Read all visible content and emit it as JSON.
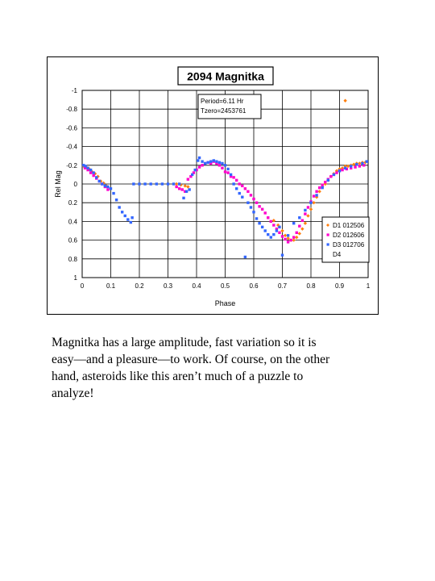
{
  "chart_data": {
    "type": "scatter",
    "title": "2094 Magnitka",
    "annotation": [
      "Period=6.11 Hr",
      "Tzero=2453761"
    ],
    "xlabel": "Phase",
    "ylabel": "Rel Mag",
    "xlim": [
      0,
      1
    ],
    "ylim": [
      -1,
      1
    ],
    "y_inverted": true,
    "grid": true,
    "legend_position": "lower-right",
    "x_ticks": [
      "0",
      "0.1",
      "0.2",
      "0.3",
      "0.4",
      "0.5",
      "0.6",
      "0.7",
      "0.8",
      "0.9",
      "1"
    ],
    "y_ticks": [
      "-1",
      "-0.8",
      "-0.6",
      "-0.4",
      "-0.2",
      "0",
      "0.2",
      "0.4",
      "0.6",
      "0.8",
      "1"
    ],
    "series": [
      {
        "name": "D1 012506",
        "color": "#ff7f0e",
        "marker": "diamond",
        "points": [
          [
            0.005,
            -0.19
          ],
          [
            0.015,
            -0.18
          ],
          [
            0.025,
            -0.16
          ],
          [
            0.035,
            -0.13
          ],
          [
            0.045,
            -0.11
          ],
          [
            0.055,
            -0.08
          ],
          [
            0.065,
            -0.03
          ],
          [
            0.075,
            -0.01
          ],
          [
            0.085,
            0.02
          ],
          [
            0.33,
            0.0
          ],
          [
            0.345,
            0.01
          ],
          [
            0.36,
            0.02
          ],
          [
            0.37,
            0.03
          ],
          [
            0.67,
            0.39
          ],
          [
            0.685,
            0.44
          ],
          [
            0.7,
            0.5
          ],
          [
            0.71,
            0.55
          ],
          [
            0.72,
            0.58
          ],
          [
            0.73,
            0.6
          ],
          [
            0.74,
            0.6
          ],
          [
            0.75,
            0.57
          ],
          [
            0.76,
            0.53
          ],
          [
            0.77,
            0.48
          ],
          [
            0.78,
            0.42
          ],
          [
            0.79,
            0.34
          ],
          [
            0.8,
            0.27
          ],
          [
            0.81,
            0.2
          ],
          [
            0.82,
            0.14
          ],
          [
            0.83,
            0.08
          ],
          [
            0.84,
            0.03
          ],
          [
            0.85,
            0.0
          ],
          [
            0.86,
            -0.04
          ],
          [
            0.87,
            -0.08
          ],
          [
            0.88,
            -0.11
          ],
          [
            0.89,
            -0.14
          ],
          [
            0.9,
            -0.16
          ],
          [
            0.91,
            -0.17
          ],
          [
            0.92,
            -0.19
          ],
          [
            0.93,
            -0.19
          ],
          [
            0.94,
            -0.2
          ],
          [
            0.95,
            -0.21
          ],
          [
            0.96,
            -0.22
          ],
          [
            0.97,
            -0.22
          ],
          [
            0.98,
            -0.23
          ],
          [
            0.99,
            -0.23
          ],
          [
            0.92,
            -0.89
          ]
        ]
      },
      {
        "name": "D2 012606",
        "color": "#ff00cc",
        "marker": "square",
        "points": [
          [
            0.01,
            -0.17
          ],
          [
            0.02,
            -0.15
          ],
          [
            0.03,
            -0.12
          ],
          [
            0.04,
            -0.09
          ],
          [
            0.05,
            -0.06
          ],
          [
            0.06,
            -0.03
          ],
          [
            0.07,
            0.0
          ],
          [
            0.08,
            0.03
          ],
          [
            0.09,
            0.06
          ],
          [
            0.33,
            0.03
          ],
          [
            0.34,
            0.05
          ],
          [
            0.35,
            0.06
          ],
          [
            0.36,
            0.08
          ],
          [
            0.37,
            -0.05
          ],
          [
            0.38,
            -0.08
          ],
          [
            0.39,
            -0.12
          ],
          [
            0.4,
            -0.15
          ],
          [
            0.41,
            -0.18
          ],
          [
            0.42,
            -0.2
          ],
          [
            0.43,
            -0.22
          ],
          [
            0.44,
            -0.23
          ],
          [
            0.45,
            -0.22
          ],
          [
            0.46,
            -0.24
          ],
          [
            0.47,
            -0.22
          ],
          [
            0.48,
            -0.2
          ],
          [
            0.49,
            -0.17
          ],
          [
            0.5,
            -0.13
          ],
          [
            0.51,
            -0.12
          ],
          [
            0.52,
            -0.08
          ],
          [
            0.53,
            -0.07
          ],
          [
            0.54,
            -0.04
          ],
          [
            0.55,
            0.0
          ],
          [
            0.56,
            0.02
          ],
          [
            0.57,
            0.05
          ],
          [
            0.58,
            0.08
          ],
          [
            0.59,
            0.12
          ],
          [
            0.6,
            0.16
          ],
          [
            0.61,
            0.2
          ],
          [
            0.62,
            0.24
          ],
          [
            0.63,
            0.27
          ],
          [
            0.64,
            0.31
          ],
          [
            0.65,
            0.36
          ],
          [
            0.66,
            0.4
          ],
          [
            0.67,
            0.44
          ],
          [
            0.68,
            0.48
          ],
          [
            0.69,
            0.52
          ],
          [
            0.7,
            0.56
          ],
          [
            0.71,
            0.59
          ],
          [
            0.72,
            0.62
          ],
          [
            0.73,
            0.6
          ],
          [
            0.74,
            0.57
          ],
          [
            0.75,
            0.52
          ],
          [
            0.76,
            0.45
          ],
          [
            0.77,
            0.39
          ],
          [
            0.78,
            0.32
          ],
          [
            0.79,
            0.25
          ],
          [
            0.8,
            0.19
          ],
          [
            0.81,
            0.13
          ],
          [
            0.82,
            0.08
          ],
          [
            0.83,
            0.04
          ],
          [
            0.84,
            0.01
          ],
          [
            0.85,
            -0.02
          ],
          [
            0.86,
            -0.05
          ],
          [
            0.87,
            -0.08
          ],
          [
            0.88,
            -0.1
          ],
          [
            0.89,
            -0.12
          ],
          [
            0.9,
            -0.14
          ],
          [
            0.91,
            -0.15
          ],
          [
            0.925,
            -0.16
          ],
          [
            0.94,
            -0.17
          ],
          [
            0.955,
            -0.18
          ],
          [
            0.97,
            -0.19
          ],
          [
            0.985,
            -0.2
          ]
        ]
      },
      {
        "name": "D3 012706",
        "color": "#3366ff",
        "marker": "square",
        "points": [
          [
            0.005,
            -0.2
          ],
          [
            0.012,
            -0.19
          ],
          [
            0.02,
            -0.17
          ],
          [
            0.03,
            -0.15
          ],
          [
            0.04,
            -0.12
          ],
          [
            0.05,
            -0.07
          ],
          [
            0.06,
            -0.03
          ],
          [
            0.07,
            0.0
          ],
          [
            0.08,
            0.02
          ],
          [
            0.09,
            0.03
          ],
          [
            0.1,
            0.05
          ],
          [
            0.11,
            0.1
          ],
          [
            0.12,
            0.17
          ],
          [
            0.13,
            0.25
          ],
          [
            0.14,
            0.3
          ],
          [
            0.15,
            0.34
          ],
          [
            0.16,
            0.38
          ],
          [
            0.17,
            0.41
          ],
          [
            0.175,
            0.36
          ],
          [
            0.18,
            0.0
          ],
          [
            0.2,
            0.0
          ],
          [
            0.22,
            0.0
          ],
          [
            0.24,
            0.0
          ],
          [
            0.26,
            0.0
          ],
          [
            0.28,
            0.0
          ],
          [
            0.3,
            0.0
          ],
          [
            0.32,
            0.0
          ],
          [
            0.34,
            0.0
          ],
          [
            0.355,
            0.15
          ],
          [
            0.365,
            0.08
          ],
          [
            0.375,
            0.06
          ],
          [
            0.385,
            -0.1
          ],
          [
            0.395,
            -0.15
          ],
          [
            0.405,
            -0.25
          ],
          [
            0.41,
            -0.28
          ],
          [
            0.42,
            -0.24
          ],
          [
            0.43,
            -0.22
          ],
          [
            0.44,
            -0.23
          ],
          [
            0.45,
            -0.24
          ],
          [
            0.46,
            -0.25
          ],
          [
            0.47,
            -0.24
          ],
          [
            0.48,
            -0.23
          ],
          [
            0.49,
            -0.22
          ],
          [
            0.5,
            -0.2
          ],
          [
            0.51,
            -0.16
          ],
          [
            0.52,
            -0.1
          ],
          [
            0.53,
            0.0
          ],
          [
            0.54,
            0.05
          ],
          [
            0.55,
            0.1
          ],
          [
            0.56,
            0.14
          ],
          [
            0.57,
            0.78
          ],
          [
            0.58,
            0.2
          ],
          [
            0.59,
            0.25
          ],
          [
            0.6,
            0.3
          ],
          [
            0.61,
            0.37
          ],
          [
            0.62,
            0.42
          ],
          [
            0.63,
            0.46
          ],
          [
            0.64,
            0.5
          ],
          [
            0.65,
            0.54
          ],
          [
            0.66,
            0.57
          ],
          [
            0.67,
            0.54
          ],
          [
            0.68,
            0.5
          ],
          [
            0.69,
            0.46
          ],
          [
            0.7,
            0.76
          ],
          [
            0.72,
            0.55
          ],
          [
            0.74,
            0.42
          ],
          [
            0.76,
            0.36
          ],
          [
            0.78,
            0.28
          ],
          [
            0.8,
            0.2
          ],
          [
            0.82,
            0.12
          ],
          [
            0.84,
            0.04
          ],
          [
            0.86,
            -0.04
          ],
          [
            0.88,
            -0.1
          ],
          [
            0.9,
            -0.14
          ],
          [
            0.92,
            -0.17
          ],
          [
            0.94,
            -0.19
          ],
          [
            0.96,
            -0.21
          ],
          [
            0.98,
            -0.22
          ],
          [
            0.995,
            -0.24
          ]
        ]
      },
      {
        "name": "D4",
        "color": "#ffffff",
        "marker": "none",
        "points": []
      }
    ]
  },
  "caption": {
    "lines": [
      "Magnitka has a large amplitude, fast variation so it is",
      "easy—and a pleasure—to work.  Of course, on the other",
      "hand, asteroids like this aren’t much of a puzzle to",
      "analyze!"
    ]
  }
}
